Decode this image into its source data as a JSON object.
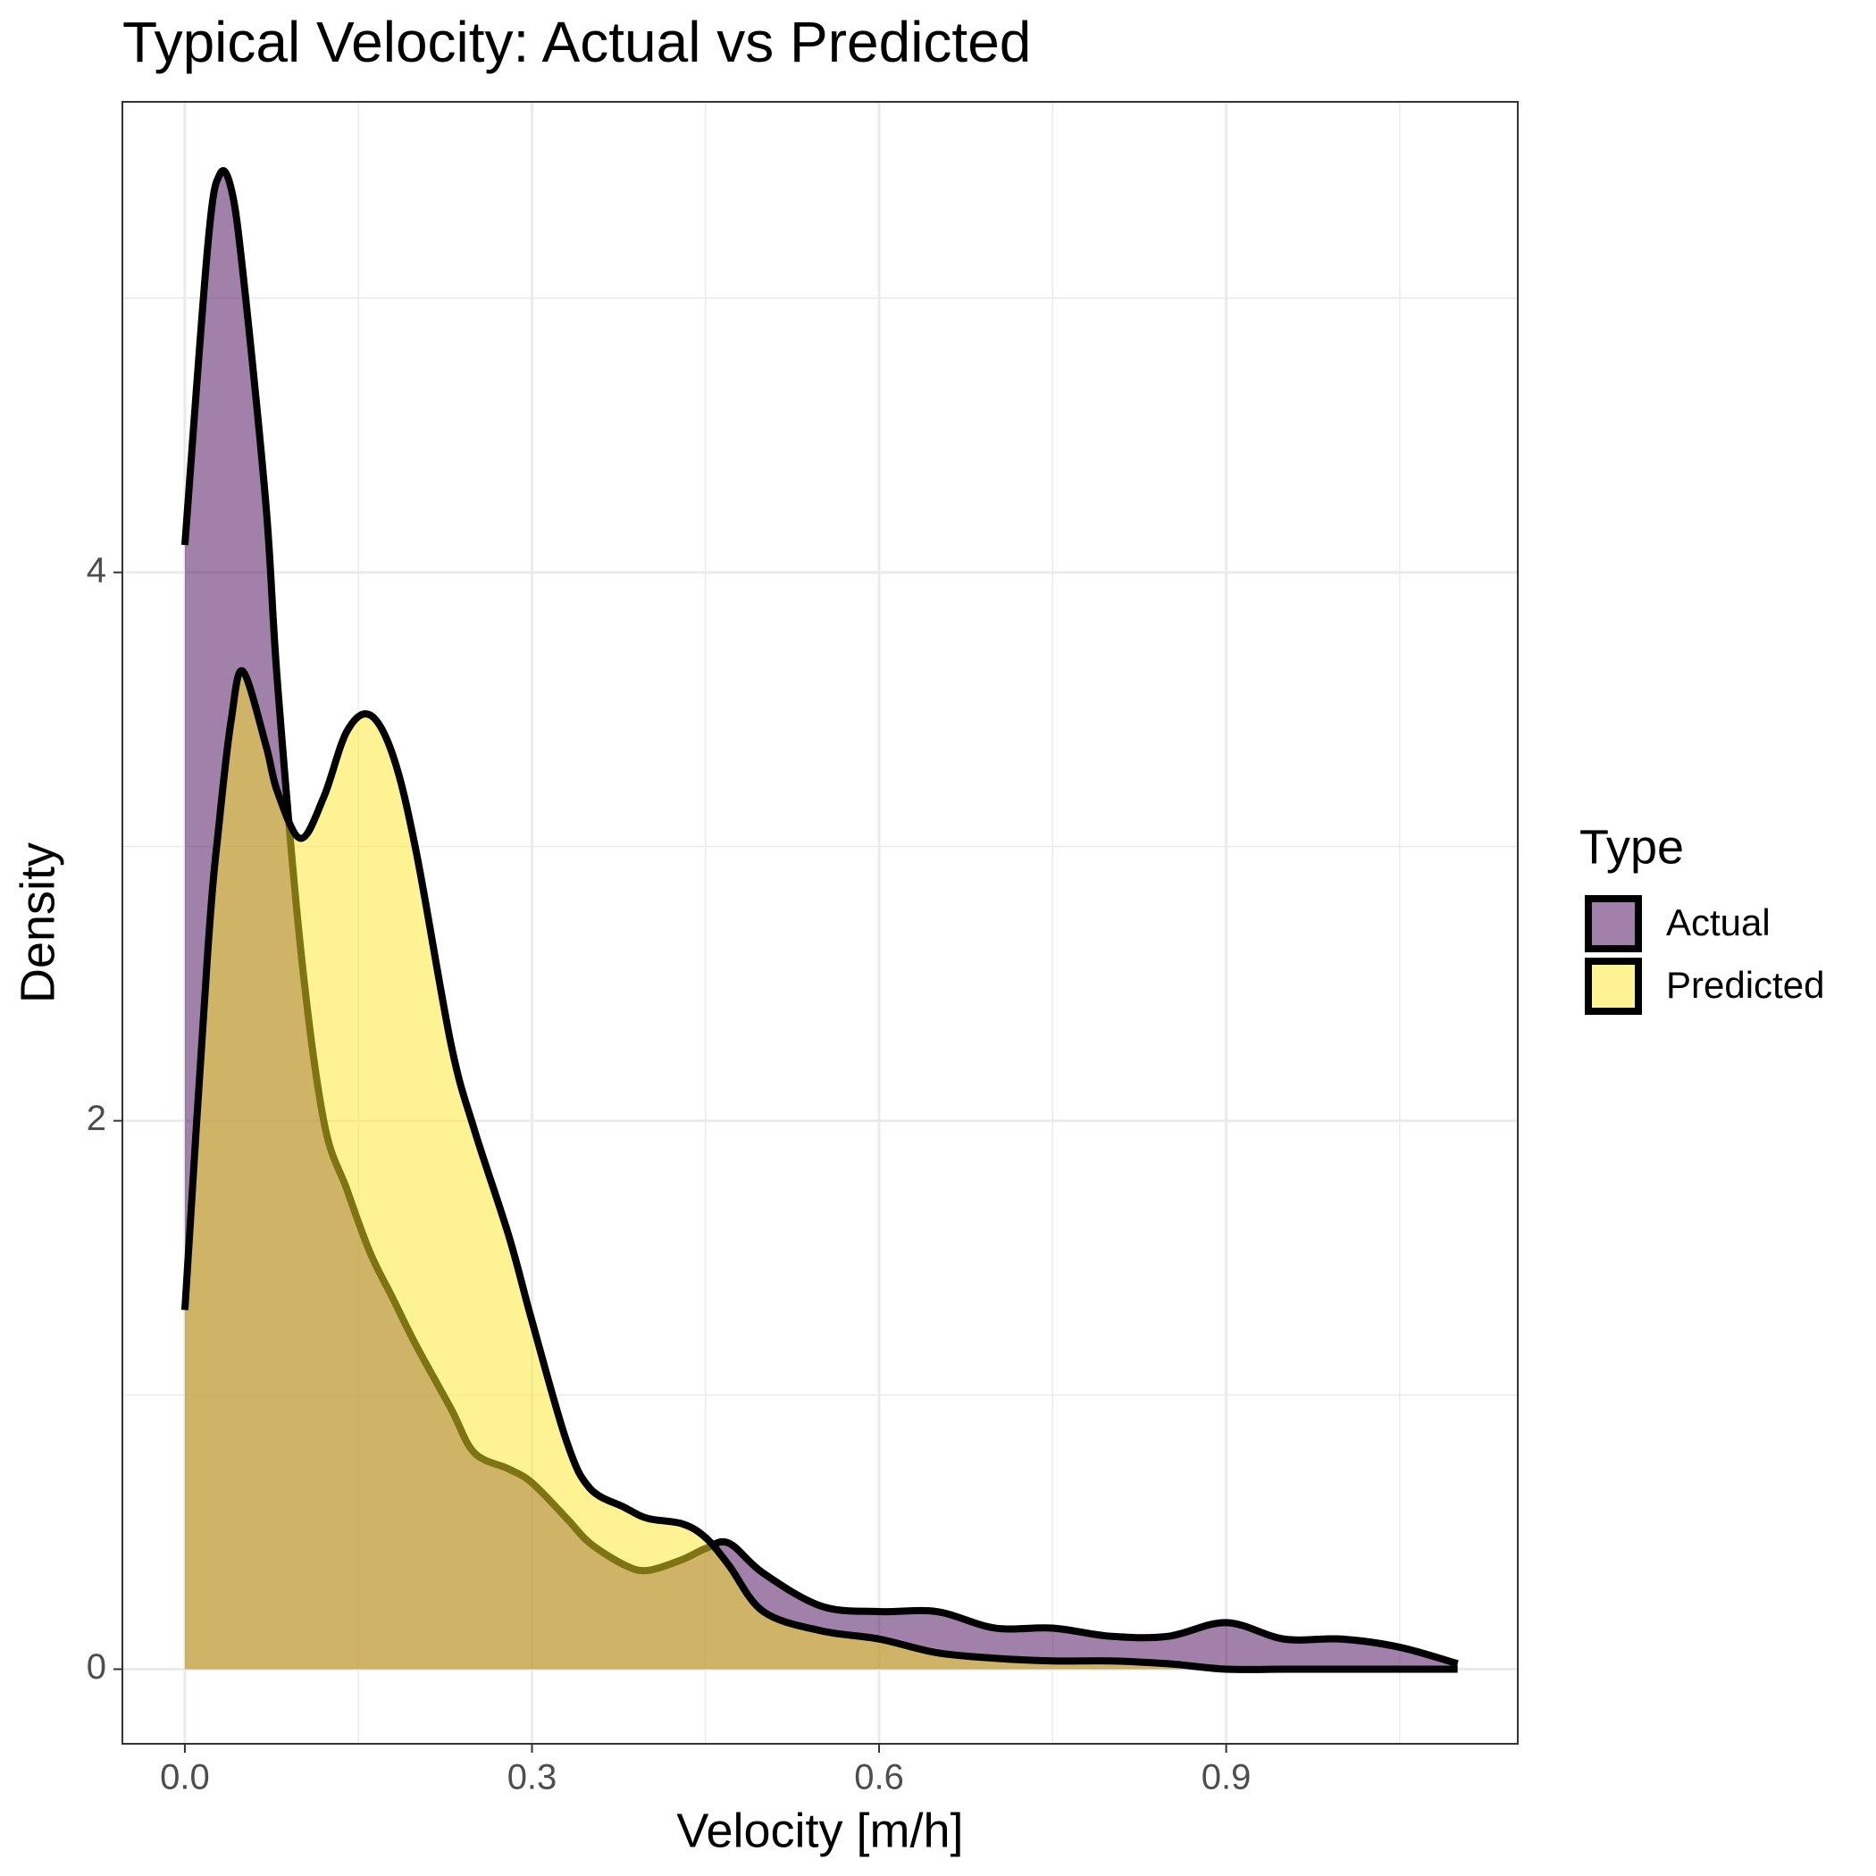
{
  "chart_data": {
    "type": "density",
    "title": "Typical Velocity: Actual vs Predicted",
    "x_label": "Velocity [m/h]",
    "y_label": "Density",
    "legend_title": "Type",
    "legend_position": "right",
    "x": [
      0,
      0.02,
      0.03,
      0.04,
      0.05,
      0.07,
      0.08,
      0.1,
      0.12,
      0.14,
      0.16,
      0.18,
      0.2,
      0.23,
      0.25,
      0.28,
      0.3,
      0.33,
      0.35,
      0.38,
      0.4,
      0.43,
      0.45,
      0.47,
      0.5,
      0.55,
      0.6,
      0.65,
      0.7,
      0.75,
      0.8,
      0.85,
      0.9,
      0.95,
      1.0,
      1.05,
      1.1
    ],
    "series": [
      {
        "name": "Actual",
        "color": "#440154",
        "values": [
          4.1,
          5.2,
          5.45,
          5.4,
          5.1,
          4.25,
          3.6,
          2.63,
          2.0,
          1.75,
          1.52,
          1.35,
          1.18,
          0.95,
          0.79,
          0.73,
          0.68,
          0.55,
          0.46,
          0.38,
          0.36,
          0.4,
          0.44,
          0.46,
          0.35,
          0.23,
          0.21,
          0.21,
          0.15,
          0.15,
          0.12,
          0.12,
          0.17,
          0.11,
          0.11,
          0.08,
          0.02
        ]
      },
      {
        "name": "Predicted",
        "color": "#FDE725",
        "values": [
          1.31,
          2.63,
          3.1,
          3.46,
          3.64,
          3.37,
          3.2,
          3.03,
          3.18,
          3.42,
          3.48,
          3.33,
          2.98,
          2.28,
          1.97,
          1.58,
          1.27,
          0.83,
          0.66,
          0.59,
          0.55,
          0.53,
          0.48,
          0.38,
          0.21,
          0.14,
          0.11,
          0.06,
          0.04,
          0.03,
          0.03,
          0.02,
          0,
          0,
          0,
          0,
          0
        ]
      }
    ],
    "fill_opacity": 0.5,
    "line_color": "#000000",
    "xlim": [
      -0.054,
      1.152
    ],
    "ylim": [
      -0.272,
      5.716
    ],
    "xticks": [
      {
        "value": 0,
        "label": "0.0"
      },
      0.3,
      0.6,
      0.9
    ],
    "yticks": [
      0,
      2,
      4
    ],
    "grid": true
  }
}
